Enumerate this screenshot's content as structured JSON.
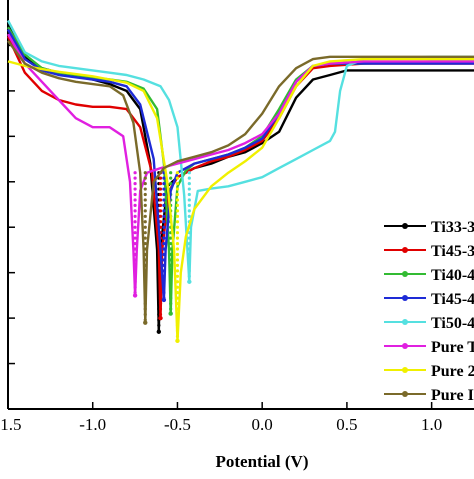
{
  "chart_data": {
    "type": "line",
    "title": "",
    "xlabel": "Potential (V)",
    "ylabel": "",
    "xlim": [
      -1.5,
      1.25
    ],
    "x_ticks": [
      "-1.5",
      "-1.0",
      "-0.5",
      "0.0",
      "0.5",
      "1.0"
    ],
    "x_tick_values": [
      -1.5,
      -1.0,
      -0.5,
      0.0,
      0.5,
      1.0
    ],
    "ylim": [
      -9,
      0
    ],
    "y_tick_values": [
      -1,
      -2,
      -3,
      -4,
      -5,
      -6,
      -7,
      -8
    ],
    "y_tick_labels_visible": false,
    "grid": false,
    "legend_placement": "right",
    "series": [
      {
        "name": "Ti33-3",
        "color": "#000000",
        "marker": "circle",
        "ecorr": -0.61,
        "points": [
          [
            -1.5,
            -0.55
          ],
          [
            -1.4,
            -1.25
          ],
          [
            -1.3,
            -1.5
          ],
          [
            -1.2,
            -1.6
          ],
          [
            -1.1,
            -1.68
          ],
          [
            -1.0,
            -1.75
          ],
          [
            -0.9,
            -1.85
          ],
          [
            -0.8,
            -2.0
          ],
          [
            -0.72,
            -2.4
          ],
          [
            -0.66,
            -3.6
          ],
          [
            -0.62,
            -5.5
          ],
          [
            -0.61,
            -7.3
          ],
          [
            -0.6,
            -5.5
          ],
          [
            -0.56,
            -4.1
          ],
          [
            -0.5,
            -3.9
          ],
          [
            -0.4,
            -3.7
          ],
          [
            -0.3,
            -3.6
          ],
          [
            -0.2,
            -3.45
          ],
          [
            -0.1,
            -3.35
          ],
          [
            0.0,
            -3.15
          ],
          [
            0.1,
            -2.9
          ],
          [
            0.2,
            -2.15
          ],
          [
            0.3,
            -1.75
          ],
          [
            0.4,
            -1.65
          ],
          [
            0.5,
            -1.55
          ],
          [
            0.6,
            -1.55
          ],
          [
            1.0,
            -1.55
          ],
          [
            1.25,
            -1.55
          ]
        ]
      },
      {
        "name": "Ti45-3",
        "color": "#e00000",
        "marker": "circle",
        "ecorr": -0.6,
        "points": [
          [
            -1.5,
            -0.8
          ],
          [
            -1.4,
            -1.6
          ],
          [
            -1.3,
            -2.0
          ],
          [
            -1.2,
            -2.2
          ],
          [
            -1.1,
            -2.3
          ],
          [
            -1.0,
            -2.35
          ],
          [
            -0.9,
            -2.35
          ],
          [
            -0.8,
            -2.4
          ],
          [
            -0.72,
            -2.8
          ],
          [
            -0.65,
            -3.8
          ],
          [
            -0.61,
            -5.5
          ],
          [
            -0.6,
            -7.0
          ],
          [
            -0.59,
            -5.5
          ],
          [
            -0.55,
            -4.2
          ],
          [
            -0.5,
            -3.9
          ],
          [
            -0.4,
            -3.7
          ],
          [
            -0.3,
            -3.55
          ],
          [
            -0.2,
            -3.45
          ],
          [
            -0.1,
            -3.3
          ],
          [
            0.0,
            -3.1
          ],
          [
            0.1,
            -2.6
          ],
          [
            0.2,
            -1.9
          ],
          [
            0.3,
            -1.5
          ],
          [
            0.4,
            -1.45
          ],
          [
            0.6,
            -1.4
          ],
          [
            1.0,
            -1.4
          ],
          [
            1.25,
            -1.4
          ]
        ]
      },
      {
        "name": "Ti40-4",
        "color": "#33bb33",
        "marker": "triangle-up",
        "ecorr": -0.54,
        "points": [
          [
            -1.5,
            -0.6
          ],
          [
            -1.4,
            -1.2
          ],
          [
            -1.3,
            -1.5
          ],
          [
            -1.2,
            -1.6
          ],
          [
            -1.1,
            -1.65
          ],
          [
            -1.0,
            -1.7
          ],
          [
            -0.9,
            -1.75
          ],
          [
            -0.8,
            -1.8
          ],
          [
            -0.7,
            -1.95
          ],
          [
            -0.62,
            -2.4
          ],
          [
            -0.58,
            -3.6
          ],
          [
            -0.55,
            -5.5
          ],
          [
            -0.54,
            -6.9
          ],
          [
            -0.53,
            -5.5
          ],
          [
            -0.5,
            -4.1
          ],
          [
            -0.45,
            -3.75
          ],
          [
            -0.4,
            -3.6
          ],
          [
            -0.3,
            -3.5
          ],
          [
            -0.2,
            -3.4
          ],
          [
            -0.1,
            -3.25
          ],
          [
            0.0,
            -3.0
          ],
          [
            0.1,
            -2.4
          ],
          [
            0.2,
            -1.75
          ],
          [
            0.3,
            -1.45
          ],
          [
            0.4,
            -1.4
          ],
          [
            0.6,
            -1.4
          ],
          [
            1.0,
            -1.35
          ],
          [
            1.25,
            -1.35
          ]
        ]
      },
      {
        "name": "Ti45-4",
        "color": "#1e2bd6",
        "marker": "triangle-down",
        "ecorr": -0.58,
        "points": [
          [
            -1.5,
            -0.65
          ],
          [
            -1.4,
            -1.3
          ],
          [
            -1.3,
            -1.55
          ],
          [
            -1.2,
            -1.65
          ],
          [
            -1.1,
            -1.7
          ],
          [
            -1.0,
            -1.75
          ],
          [
            -0.9,
            -1.8
          ],
          [
            -0.8,
            -1.9
          ],
          [
            -0.72,
            -2.3
          ],
          [
            -0.64,
            -3.5
          ],
          [
            -0.6,
            -5.5
          ],
          [
            -0.58,
            -6.6
          ],
          [
            -0.57,
            -5.5
          ],
          [
            -0.54,
            -4.2
          ],
          [
            -0.5,
            -3.8
          ],
          [
            -0.4,
            -3.6
          ],
          [
            -0.3,
            -3.5
          ],
          [
            -0.2,
            -3.4
          ],
          [
            -0.1,
            -3.25
          ],
          [
            0.0,
            -3.05
          ],
          [
            0.1,
            -2.5
          ],
          [
            0.2,
            -1.8
          ],
          [
            0.3,
            -1.45
          ],
          [
            0.4,
            -1.4
          ],
          [
            0.6,
            -1.4
          ],
          [
            1.0,
            -1.4
          ],
          [
            1.25,
            -1.4
          ]
        ]
      },
      {
        "name": "Ti50-4",
        "color": "#55e0e0",
        "marker": "diamond",
        "ecorr": -0.43,
        "points": [
          [
            -1.5,
            -0.45
          ],
          [
            -1.4,
            -1.15
          ],
          [
            -1.3,
            -1.35
          ],
          [
            -1.2,
            -1.45
          ],
          [
            -1.1,
            -1.5
          ],
          [
            -1.0,
            -1.55
          ],
          [
            -0.9,
            -1.6
          ],
          [
            -0.8,
            -1.65
          ],
          [
            -0.7,
            -1.75
          ],
          [
            -0.6,
            -1.9
          ],
          [
            -0.55,
            -2.2
          ],
          [
            -0.5,
            -2.8
          ],
          [
            -0.46,
            -4.3
          ],
          [
            -0.43,
            -6.2
          ],
          [
            -0.42,
            -5.0
          ],
          [
            -0.38,
            -4.2
          ],
          [
            -0.3,
            -4.15
          ],
          [
            -0.2,
            -4.1
          ],
          [
            -0.1,
            -4.0
          ],
          [
            0.0,
            -3.9
          ],
          [
            0.1,
            -3.7
          ],
          [
            0.2,
            -3.5
          ],
          [
            0.3,
            -3.3
          ],
          [
            0.4,
            -3.1
          ],
          [
            0.43,
            -2.9
          ],
          [
            0.46,
            -2.0
          ],
          [
            0.5,
            -1.45
          ],
          [
            0.6,
            -1.3
          ],
          [
            1.0,
            -1.25
          ],
          [
            1.25,
            -1.25
          ]
        ]
      },
      {
        "name": "Pure T",
        "color": "#e020e0",
        "marker": "star",
        "ecorr": -0.75,
        "points": [
          [
            -1.5,
            -0.75
          ],
          [
            -1.4,
            -1.4
          ],
          [
            -1.3,
            -1.8
          ],
          [
            -1.2,
            -2.2
          ],
          [
            -1.1,
            -2.6
          ],
          [
            -1.0,
            -2.8
          ],
          [
            -0.9,
            -2.8
          ],
          [
            -0.82,
            -3.0
          ],
          [
            -0.78,
            -4.0
          ],
          [
            -0.76,
            -5.5
          ],
          [
            -0.75,
            -6.5
          ],
          [
            -0.74,
            -5.5
          ],
          [
            -0.72,
            -4.2
          ],
          [
            -0.68,
            -3.8
          ],
          [
            -0.6,
            -3.7
          ],
          [
            -0.5,
            -3.6
          ],
          [
            -0.4,
            -3.5
          ],
          [
            -0.3,
            -3.4
          ],
          [
            -0.2,
            -3.3
          ],
          [
            -0.1,
            -3.15
          ],
          [
            0.0,
            -2.95
          ],
          [
            0.1,
            -2.5
          ],
          [
            0.2,
            -1.8
          ],
          [
            0.3,
            -1.45
          ],
          [
            0.4,
            -1.4
          ],
          [
            0.6,
            -1.35
          ],
          [
            1.0,
            -1.35
          ],
          [
            1.25,
            -1.35
          ]
        ]
      },
      {
        "name": "Pure 2",
        "color": "#f0f000",
        "marker": "star",
        "ecorr": -0.5,
        "points": [
          [
            -1.5,
            -1.35
          ],
          [
            -1.4,
            -1.45
          ],
          [
            -1.3,
            -1.52
          ],
          [
            -1.2,
            -1.58
          ],
          [
            -1.1,
            -1.63
          ],
          [
            -1.0,
            -1.68
          ],
          [
            -0.9,
            -1.75
          ],
          [
            -0.8,
            -1.82
          ],
          [
            -0.7,
            -2.0
          ],
          [
            -0.62,
            -2.6
          ],
          [
            -0.56,
            -4.0
          ],
          [
            -0.52,
            -5.5
          ],
          [
            -0.5,
            -7.5
          ],
          [
            -0.48,
            -6.0
          ],
          [
            -0.45,
            -5.2
          ],
          [
            -0.4,
            -4.6
          ],
          [
            -0.3,
            -4.1
          ],
          [
            -0.2,
            -3.8
          ],
          [
            -0.1,
            -3.55
          ],
          [
            0.0,
            -3.25
          ],
          [
            0.1,
            -2.6
          ],
          [
            0.2,
            -1.9
          ],
          [
            0.3,
            -1.45
          ],
          [
            0.4,
            -1.35
          ],
          [
            0.6,
            -1.3
          ],
          [
            1.0,
            -1.3
          ],
          [
            1.25,
            -1.3
          ]
        ]
      },
      {
        "name": "Pure I",
        "color": "#7a6a2a",
        "marker": "circle",
        "ecorr": -0.69,
        "points": [
          [
            -1.5,
            -0.9
          ],
          [
            -1.4,
            -1.4
          ],
          [
            -1.3,
            -1.6
          ],
          [
            -1.2,
            -1.72
          ],
          [
            -1.1,
            -1.8
          ],
          [
            -1.0,
            -1.85
          ],
          [
            -0.9,
            -1.9
          ],
          [
            -0.82,
            -2.1
          ],
          [
            -0.76,
            -2.7
          ],
          [
            -0.72,
            -3.8
          ],
          [
            -0.7,
            -5.5
          ],
          [
            -0.69,
            -7.1
          ],
          [
            -0.68,
            -5.5
          ],
          [
            -0.64,
            -4.0
          ],
          [
            -0.58,
            -3.7
          ],
          [
            -0.5,
            -3.55
          ],
          [
            -0.4,
            -3.45
          ],
          [
            -0.3,
            -3.35
          ],
          [
            -0.2,
            -3.2
          ],
          [
            -0.1,
            -2.95
          ],
          [
            0.0,
            -2.5
          ],
          [
            0.1,
            -1.9
          ],
          [
            0.2,
            -1.5
          ],
          [
            0.3,
            -1.3
          ],
          [
            0.4,
            -1.25
          ],
          [
            0.6,
            -1.25
          ],
          [
            1.0,
            -1.25
          ],
          [
            1.25,
            -1.25
          ]
        ]
      }
    ]
  }
}
